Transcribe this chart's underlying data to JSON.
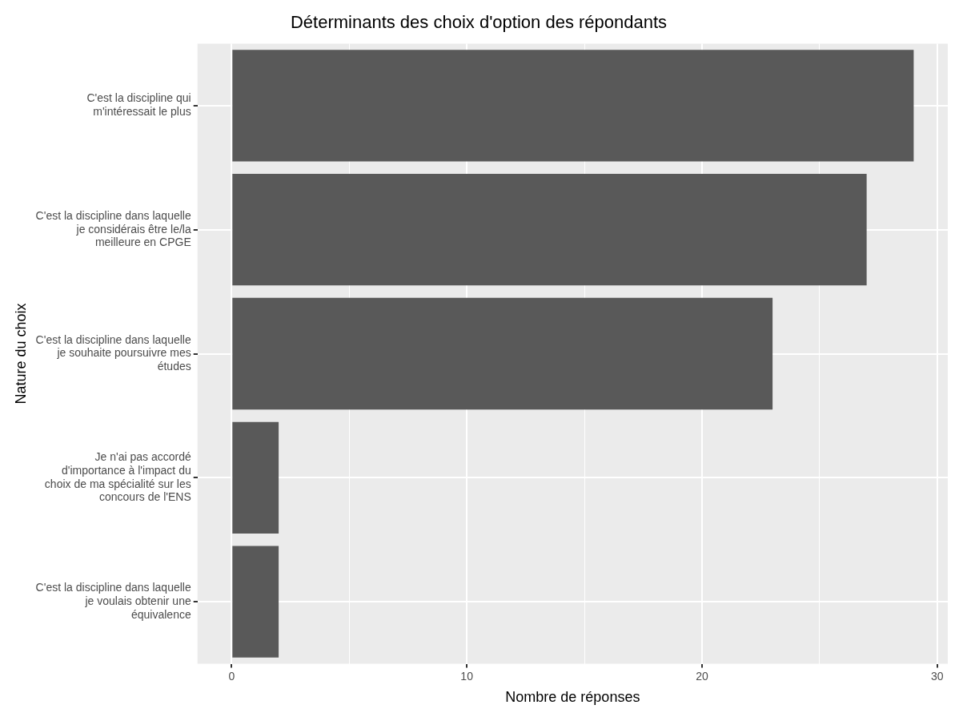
{
  "chart_data": {
    "type": "bar",
    "orientation": "horizontal",
    "title": "Déterminants des choix d'option des répondants",
    "xlabel": "Nombre de réponses",
    "ylabel": "Nature du choix",
    "categories": [
      "C'est la discipline qui m'intéressait le plus",
      "C'est la discipline dans laquelle je considérais être le/la meilleure en CPGE",
      "C'est la discipline dans laquelle je souhaite poursuivre mes études",
      "Je n'ai pas accordé d'importance à l'impact du choix de ma spécialité sur les concours de l'ENS",
      "C'est la discipline dans laquelle je voulais obtenir une équivalence"
    ],
    "values": [
      29,
      27,
      23,
      2,
      2
    ],
    "color": "#595959",
    "xlim": [
      -1.45,
      30.45
    ],
    "xticks": [
      0,
      {
        "value": 5,
        "label": null
      },
      10,
      {
        "value": 15,
        "label": null
      },
      20,
      {
        "value": 25,
        "label": null
      },
      30
    ],
    "grid": true,
    "legend": false
  }
}
